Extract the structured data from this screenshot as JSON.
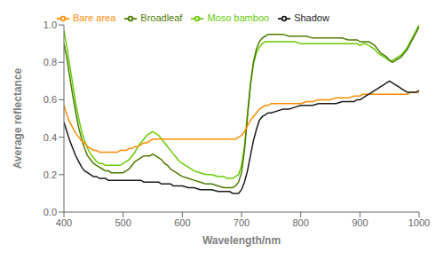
{
  "chart_data": {
    "type": "line",
    "xlabel": "Wavelength/nm",
    "ylabel": "Average reflectance",
    "xlim": [
      400,
      1000
    ],
    "ylim": [
      0.0,
      1.0
    ],
    "xticks": [
      400,
      500,
      600,
      700,
      800,
      900,
      1000
    ],
    "yticks": [
      {
        "value": 0,
        "label": "0.0"
      },
      0.2,
      0.4,
      0.6,
      0.8,
      {
        "value": 1,
        "label": "1.0"
      }
    ],
    "grid": false,
    "legend": "upper left",
    "x": [
      400,
      405,
      410,
      415,
      420,
      425,
      430,
      435,
      440,
      445,
      450,
      455,
      460,
      465,
      470,
      475,
      480,
      485,
      490,
      495,
      500,
      505,
      510,
      515,
      520,
      525,
      530,
      535,
      540,
      545,
      550,
      555,
      560,
      565,
      570,
      575,
      580,
      585,
      590,
      595,
      600,
      610,
      620,
      630,
      640,
      650,
      660,
      670,
      675,
      680,
      685,
      690,
      695,
      700,
      705,
      710,
      715,
      720,
      725,
      730,
      735,
      740,
      745,
      750,
      760,
      770,
      780,
      790,
      800,
      810,
      820,
      830,
      840,
      850,
      860,
      870,
      880,
      890,
      895,
      900,
      905,
      910,
      915,
      920,
      925,
      930,
      935,
      940,
      945,
      950,
      955,
      960,
      965,
      970,
      975,
      980,
      985,
      990,
      995,
      1000
    ],
    "series": [
      {
        "name": "Moso bamboo",
        "color": "#66cc00",
        "values": [
          0.97,
          0.88,
          0.78,
          0.68,
          0.58,
          0.5,
          0.43,
          0.38,
          0.34,
          0.31,
          0.29,
          0.27,
          0.26,
          0.26,
          0.25,
          0.25,
          0.25,
          0.25,
          0.25,
          0.25,
          0.26,
          0.27,
          0.28,
          0.3,
          0.32,
          0.35,
          0.37,
          0.39,
          0.41,
          0.42,
          0.43,
          0.42,
          0.41,
          0.39,
          0.37,
          0.35,
          0.33,
          0.31,
          0.29,
          0.27,
          0.26,
          0.24,
          0.22,
          0.21,
          0.2,
          0.2,
          0.19,
          0.19,
          0.18,
          0.18,
          0.18,
          0.19,
          0.2,
          0.25,
          0.35,
          0.52,
          0.68,
          0.79,
          0.85,
          0.88,
          0.9,
          0.91,
          0.91,
          0.91,
          0.91,
          0.91,
          0.91,
          0.91,
          0.9,
          0.9,
          0.9,
          0.9,
          0.9,
          0.9,
          0.9,
          0.9,
          0.9,
          0.9,
          0.9,
          0.89,
          0.9,
          0.9,
          0.89,
          0.88,
          0.87,
          0.85,
          0.84,
          0.83,
          0.82,
          0.81,
          0.81,
          0.82,
          0.83,
          0.84,
          0.86,
          0.88,
          0.91,
          0.94,
          0.97,
          1.0
        ]
      },
      {
        "name": "Broadleaf",
        "color": "#4a7a00",
        "values": [
          0.9,
          0.82,
          0.72,
          0.62,
          0.53,
          0.45,
          0.39,
          0.34,
          0.3,
          0.28,
          0.26,
          0.25,
          0.24,
          0.23,
          0.22,
          0.22,
          0.21,
          0.21,
          0.21,
          0.21,
          0.21,
          0.22,
          0.23,
          0.25,
          0.27,
          0.28,
          0.29,
          0.3,
          0.3,
          0.3,
          0.31,
          0.3,
          0.29,
          0.28,
          0.26,
          0.25,
          0.23,
          0.22,
          0.21,
          0.2,
          0.19,
          0.18,
          0.17,
          0.16,
          0.15,
          0.15,
          0.14,
          0.13,
          0.13,
          0.13,
          0.13,
          0.14,
          0.16,
          0.21,
          0.33,
          0.51,
          0.68,
          0.8,
          0.87,
          0.91,
          0.93,
          0.94,
          0.95,
          0.95,
          0.95,
          0.95,
          0.94,
          0.94,
          0.94,
          0.94,
          0.93,
          0.93,
          0.93,
          0.93,
          0.93,
          0.93,
          0.92,
          0.92,
          0.92,
          0.91,
          0.91,
          0.91,
          0.91,
          0.9,
          0.89,
          0.87,
          0.85,
          0.84,
          0.83,
          0.81,
          0.8,
          0.81,
          0.82,
          0.83,
          0.85,
          0.87,
          0.9,
          0.93,
          0.96,
          0.99
        ]
      },
      {
        "name": "Bare area",
        "color": "#ff8c00",
        "values": [
          0.57,
          0.52,
          0.48,
          0.45,
          0.42,
          0.4,
          0.38,
          0.37,
          0.35,
          0.34,
          0.33,
          0.33,
          0.32,
          0.32,
          0.32,
          0.32,
          0.32,
          0.32,
          0.32,
          0.33,
          0.33,
          0.33,
          0.34,
          0.34,
          0.35,
          0.35,
          0.36,
          0.37,
          0.37,
          0.38,
          0.39,
          0.39,
          0.39,
          0.39,
          0.39,
          0.39,
          0.39,
          0.39,
          0.39,
          0.39,
          0.39,
          0.39,
          0.39,
          0.39,
          0.39,
          0.39,
          0.39,
          0.39,
          0.39,
          0.39,
          0.39,
          0.39,
          0.4,
          0.41,
          0.43,
          0.46,
          0.49,
          0.51,
          0.53,
          0.55,
          0.56,
          0.57,
          0.57,
          0.58,
          0.58,
          0.58,
          0.58,
          0.58,
          0.58,
          0.59,
          0.59,
          0.6,
          0.6,
          0.6,
          0.61,
          0.61,
          0.61,
          0.62,
          0.62,
          0.62,
          0.63,
          0.63,
          0.63,
          0.63,
          0.63,
          0.63,
          0.63,
          0.63,
          0.63,
          0.63,
          0.63,
          0.63,
          0.63,
          0.63,
          0.63,
          0.63,
          0.64,
          0.64,
          0.64,
          0.64
        ]
      },
      {
        "name": "Shadow",
        "color": "#1a1a1a",
        "values": [
          0.48,
          0.43,
          0.38,
          0.34,
          0.3,
          0.27,
          0.24,
          0.22,
          0.21,
          0.2,
          0.19,
          0.19,
          0.18,
          0.18,
          0.18,
          0.17,
          0.17,
          0.17,
          0.17,
          0.17,
          0.17,
          0.17,
          0.17,
          0.17,
          0.17,
          0.17,
          0.17,
          0.16,
          0.16,
          0.16,
          0.16,
          0.16,
          0.16,
          0.15,
          0.15,
          0.15,
          0.15,
          0.14,
          0.14,
          0.14,
          0.14,
          0.13,
          0.13,
          0.12,
          0.12,
          0.12,
          0.11,
          0.11,
          0.11,
          0.11,
          0.1,
          0.1,
          0.1,
          0.12,
          0.16,
          0.22,
          0.3,
          0.38,
          0.44,
          0.49,
          0.51,
          0.52,
          0.53,
          0.53,
          0.54,
          0.55,
          0.55,
          0.56,
          0.57,
          0.57,
          0.57,
          0.58,
          0.58,
          0.58,
          0.58,
          0.59,
          0.59,
          0.59,
          0.6,
          0.6,
          0.61,
          0.62,
          0.63,
          0.64,
          0.65,
          0.66,
          0.67,
          0.68,
          0.69,
          0.7,
          0.69,
          0.68,
          0.67,
          0.66,
          0.65,
          0.64,
          0.64,
          0.64,
          0.64,
          0.65
        ]
      }
    ]
  }
}
